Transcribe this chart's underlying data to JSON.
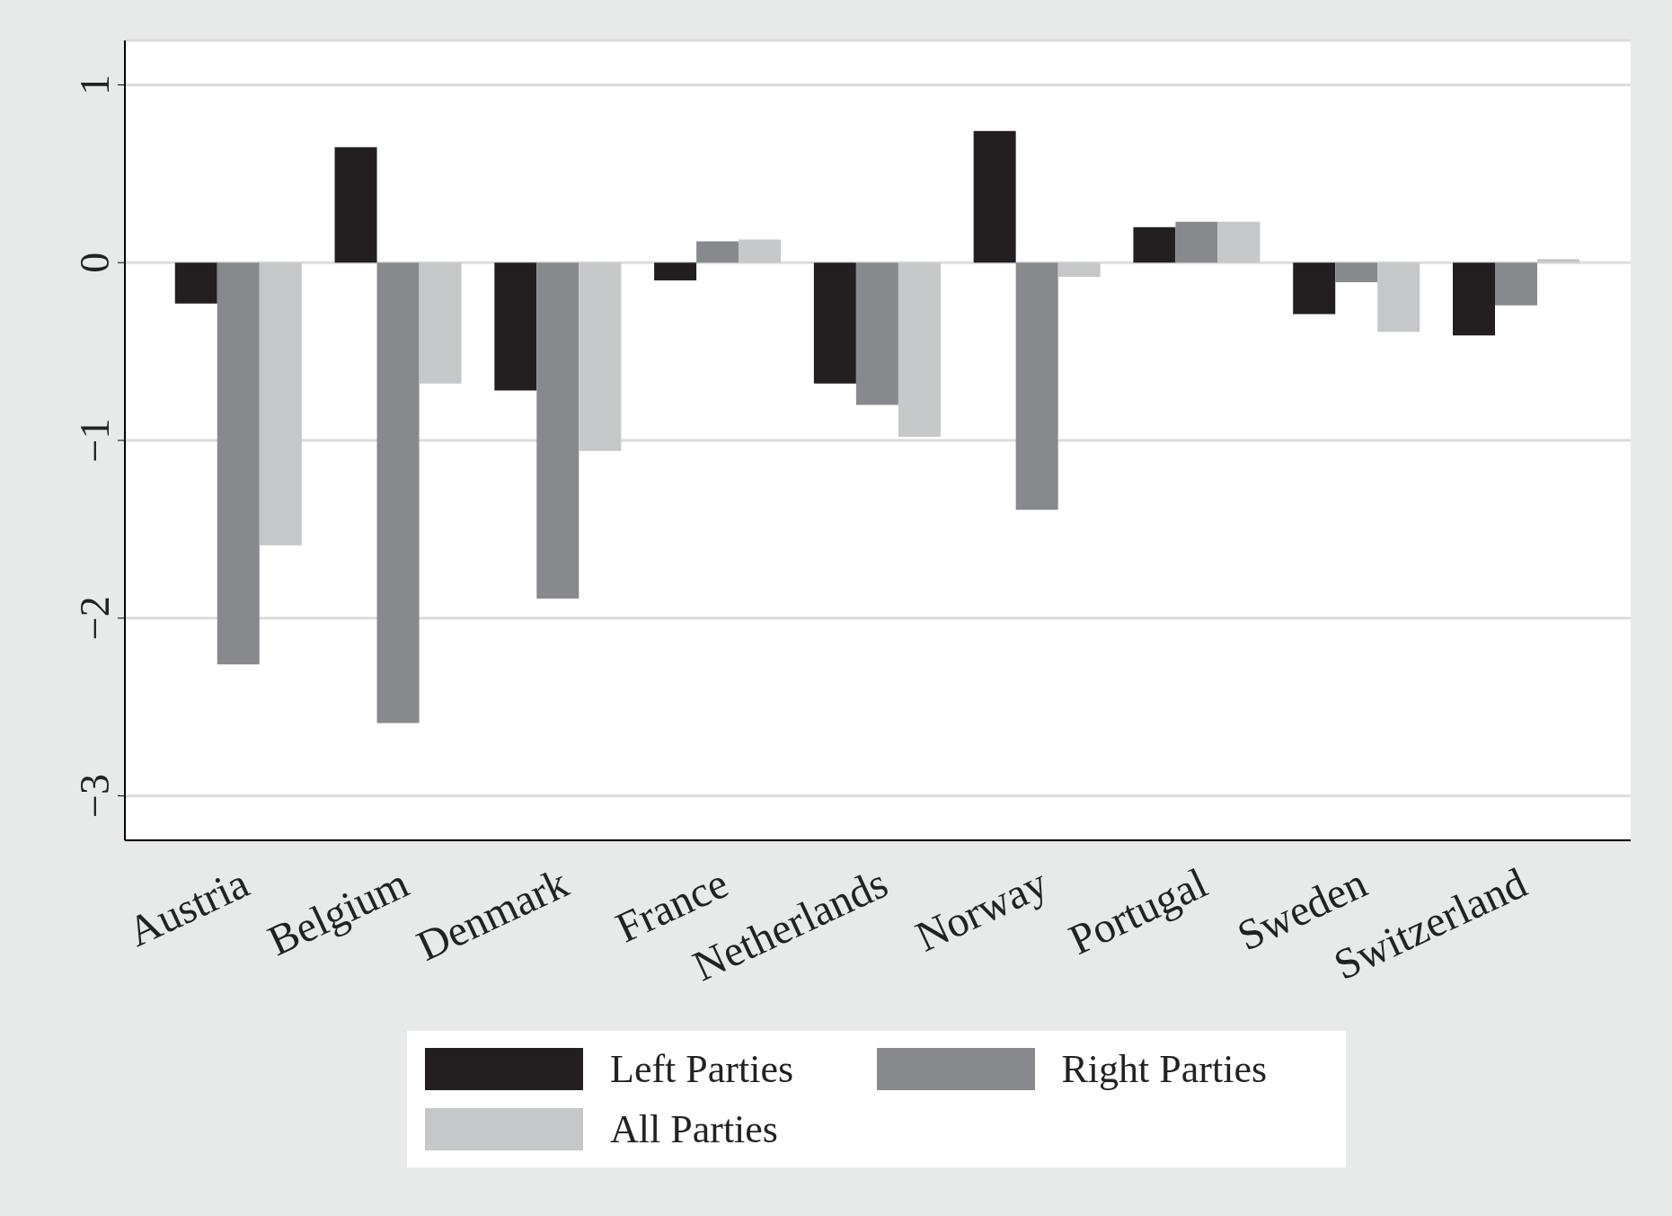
{
  "chart_data": {
    "type": "bar",
    "categories": [
      "Austria",
      "Belgium",
      "Denmark",
      "France",
      "Netherlands",
      "Norway",
      "Portugal",
      "Sweden",
      "Switzerland"
    ],
    "series": [
      {
        "name": "Left Parties",
        "color": "#231f20",
        "values": [
          -0.23,
          0.65,
          -0.72,
          -0.1,
          -0.68,
          0.74,
          0.2,
          -0.29,
          -0.41
        ]
      },
      {
        "name": "Right Parties",
        "color": "#88898d",
        "values": [
          -2.26,
          -2.59,
          -1.89,
          0.12,
          -0.8,
          -1.39,
          0.23,
          -0.11,
          -0.24
        ]
      },
      {
        "name": "All Parties",
        "color": "#c6c7c9",
        "values": [
          -1.59,
          -0.68,
          -1.06,
          0.13,
          -0.98,
          -0.08,
          0.23,
          -0.39,
          0.02
        ]
      }
    ],
    "ylim": [
      -3.25,
      1.25
    ],
    "yticks": [
      {
        "value": -3,
        "label": "−3"
      },
      {
        "value": -2,
        "label": "−2"
      },
      {
        "value": -1,
        "label": "−1"
      },
      0,
      1
    ],
    "grid": "y",
    "legend": "bottom"
  }
}
